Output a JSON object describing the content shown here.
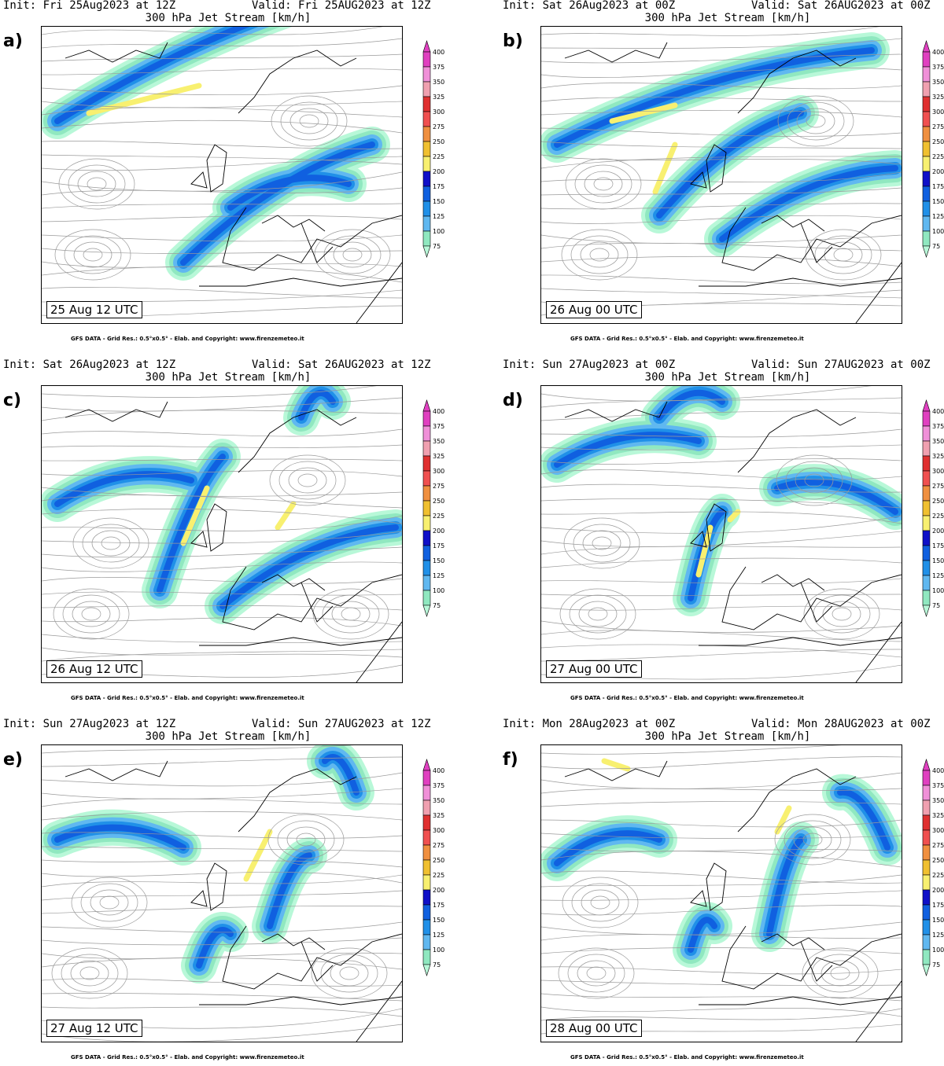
{
  "panels": [
    {
      "letter": "a)",
      "init": "Init: Fri 25Aug2023 at 12Z",
      "valid": "Valid: Fri 25AUG2023 at 12Z",
      "title": "300 hPa Jet Stream [km/h]",
      "stamp": "25 Aug 12 UTC",
      "credit": "GFS DATA - Grid Res.: 0.5°x0.5° - Elab. and Copyright: www.firenzemeteo.it"
    },
    {
      "letter": "b)",
      "init": "Init: Sat 26Aug2023 at 00Z",
      "valid": "Valid: Sat 26AUG2023 at 00Z",
      "title": "300 hPa Jet Stream [km/h]",
      "stamp": "26 Aug 00 UTC",
      "credit": "GFS DATA - Grid Res.: 0.5°x0.5° - Elab. and Copyright: www.firenzemeteo.it"
    },
    {
      "letter": "c)",
      "init": "Init: Sat 26Aug2023 at 12Z",
      "valid": "Valid: Sat 26AUG2023 at 12Z",
      "title": "300 hPa Jet Stream [km/h]",
      "stamp": "26 Aug 12 UTC",
      "credit": "GFS DATA - Grid Res.: 0.5°x0.5° - Elab. and Copyright: www.firenzemeteo.it"
    },
    {
      "letter": "d)",
      "init": "Init: Sun 27Aug2023 at 00Z",
      "valid": "Valid: Sun 27AUG2023 at 00Z",
      "title": "300 hPa Jet Stream [km/h]",
      "stamp": "27 Aug 00 UTC",
      "credit": "GFS DATA - Grid Res.: 0.5°x0.5° - Elab. and Copyright: www.firenzemeteo.it"
    },
    {
      "letter": "e)",
      "init": "Init: Sun 27Aug2023 at 12Z",
      "valid": "Valid: Sun 27AUG2023 at 12Z",
      "title": "300 hPa Jet Stream [km/h]",
      "stamp": "27 Aug 12 UTC",
      "credit": "GFS DATA - Grid Res.: 0.5°x0.5° - Elab. and Copyright: www.firenzemeteo.it"
    },
    {
      "letter": "f)",
      "init": "Init: Mon 28Aug2023 at 00Z",
      "valid": "Valid: Mon 28AUG2023 at 00Z",
      "title": "300 hPa Jet Stream [km/h]",
      "stamp": "28 Aug 00 UTC",
      "credit": "GFS DATA - Grid Res.: 0.5°x0.5° - Elab. and Copyright: www.firenzemeteo.it"
    }
  ],
  "colorbar": {
    "levels": [
      "400",
      "375",
      "350",
      "325",
      "300",
      "275",
      "250",
      "225",
      "200",
      "175",
      "150",
      "125",
      "100",
      "75"
    ],
    "colors": [
      "#e040c0",
      "#f090d8",
      "#f0a0b0",
      "#e03030",
      "#f05050",
      "#f09040",
      "#f0c030",
      "#f8f070",
      "#1010c8",
      "#1060e0",
      "#2090e8",
      "#60b8f0",
      "#90e8c0",
      "#b8f8d8"
    ]
  }
}
